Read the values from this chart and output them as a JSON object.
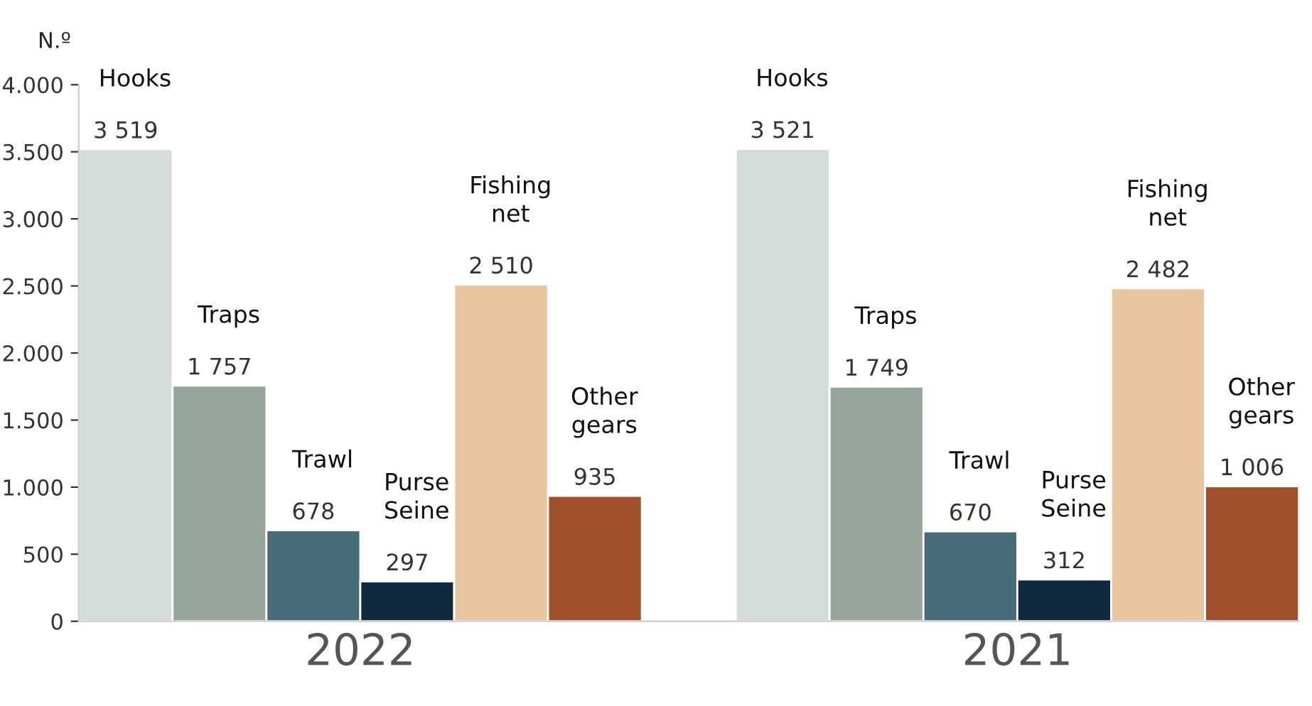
{
  "chart_data": {
    "type": "bar",
    "ylabel": "N.º",
    "categories": [
      "Hooks",
      "Traps",
      "Trawl",
      "Purse Seine",
      "Fishing net",
      "Other gears",
      null,
      "Hooks",
      "Traps",
      "Trawl",
      "Purse Seine",
      "Fishing net",
      "Other gears"
    ],
    "values": [
      3519,
      1757,
      678,
      297,
      2510,
      935,
      null,
      3521,
      1749,
      670,
      312,
      2482,
      1006
    ],
    "colors": [
      "#d3dcd8",
      "#95a59a",
      "#476c78",
      "#0f2a3e",
      "#e8c59e",
      "#a0502b",
      "#ffffff",
      "#d3dcd8",
      "#95a59a",
      "#476c78",
      "#0f2a3e",
      "#e8c59e",
      "#a0502b"
    ],
    "value_labels": [
      "3 519",
      "1 757",
      "678",
      "297",
      "2 510",
      "935",
      null,
      "3 521",
      "1 749",
      "670",
      "312",
      "2 482",
      "1 006"
    ],
    "annotations": [
      "2022",
      "2021"
    ],
    "ylim": [
      0,
      4000
    ],
    "yticks": [
      0,
      500,
      {
        "value": 1000,
        "label": "1.000"
      },
      {
        "value": 1500,
        "label": "1.500"
      },
      {
        "value": 2000,
        "label": "2.000"
      },
      {
        "value": 2500,
        "label": "2.500"
      },
      {
        "value": 3000,
        "label": "3.000"
      },
      {
        "value": 3500,
        "label": "3.500"
      },
      {
        "value": 4000,
        "label": "4.000"
      }
    ],
    "tick_labels": "y"
  }
}
